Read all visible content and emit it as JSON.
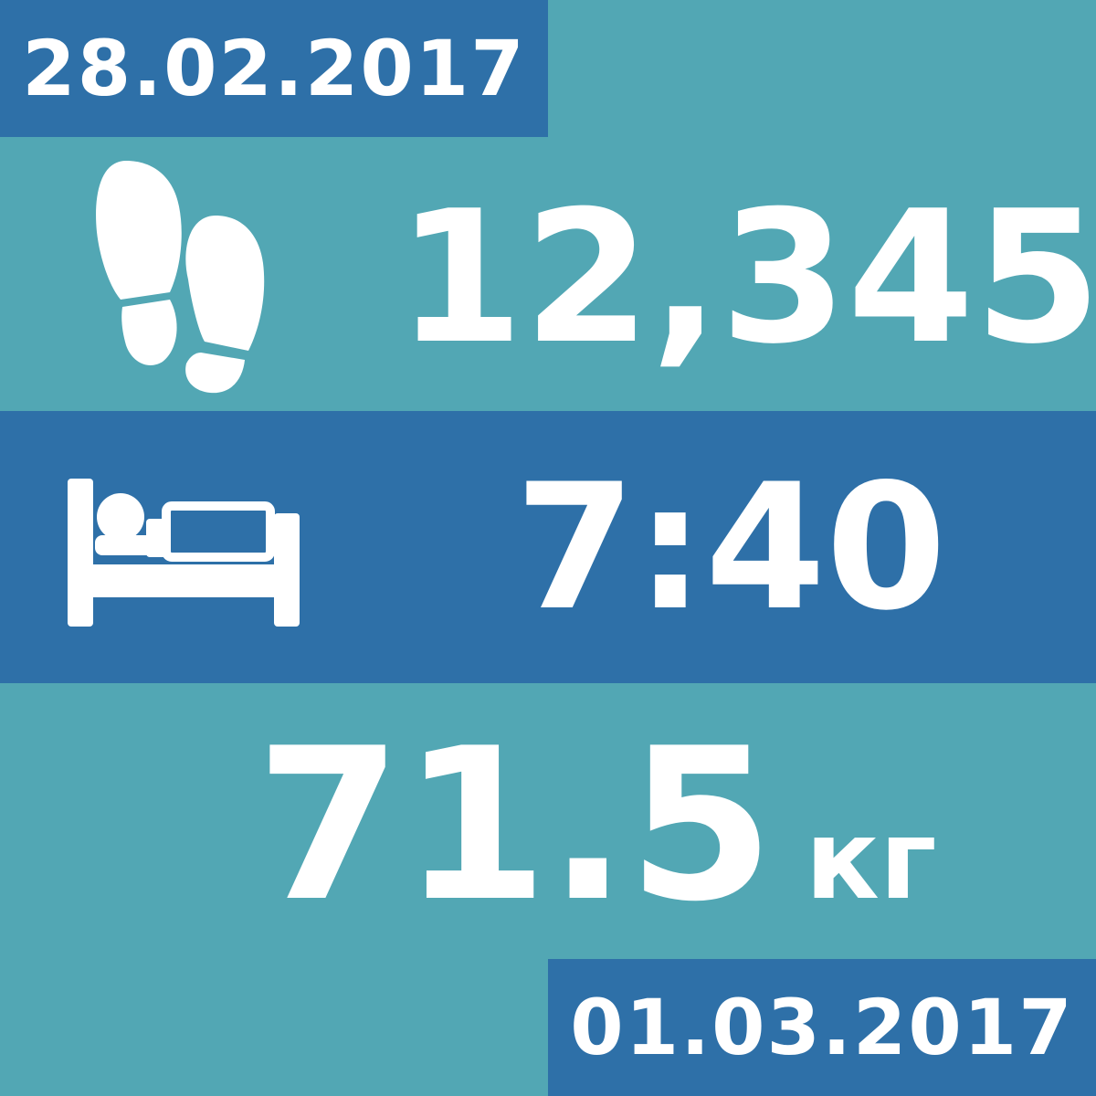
{
  "colors": {
    "background": "#52a7b4",
    "band": "#2e70a8",
    "text": "#ffffff"
  },
  "dates": {
    "start": "28.02.2017",
    "end": "01.03.2017"
  },
  "steps": {
    "icon": "footprints-icon",
    "value": "12,345"
  },
  "sleep": {
    "icon": "bed-icon",
    "value": "7:40"
  },
  "weight": {
    "value": "71.5",
    "unit": "кг"
  }
}
